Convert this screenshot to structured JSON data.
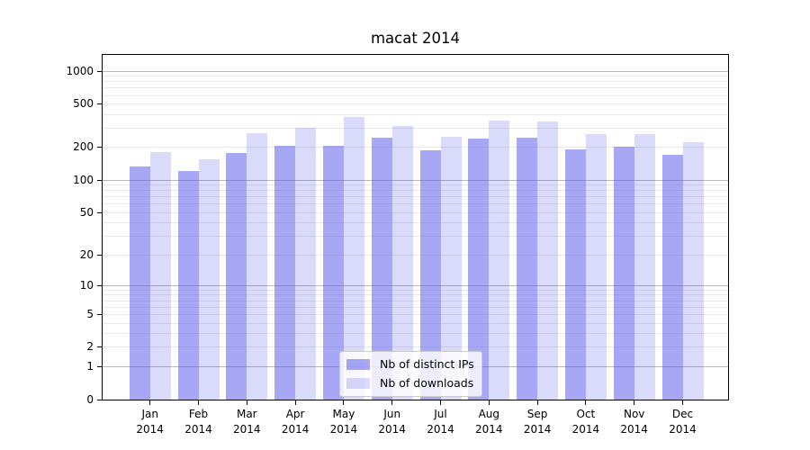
{
  "chart_data": {
    "type": "bar",
    "title": "macat 2014",
    "scale": "log1p",
    "grid": true,
    "legend_position": "lower center",
    "year_label": "2014",
    "categories": [
      "Jan",
      "Feb",
      "Mar",
      "Apr",
      "May",
      "Jun",
      "Jul",
      "Aug",
      "Sep",
      "Oct",
      "Nov",
      "Dec"
    ],
    "yticks": [
      0,
      1,
      2,
      5,
      10,
      20,
      50,
      100,
      200,
      500,
      1000
    ],
    "ylim": [
      0,
      1000
    ],
    "series": [
      {
        "name": "Nb of distinct IPs",
        "color": "#5050eb",
        "alpha": 0.5,
        "values": [
          134,
          121,
          178,
          208,
          207,
          246,
          188,
          240,
          248,
          191,
          203,
          170
        ]
      },
      {
        "name": "Nb of downloads",
        "color": "#5050eb",
        "alpha": 0.21,
        "values": [
          182,
          157,
          273,
          305,
          378,
          315,
          251,
          355,
          344,
          268,
          268,
          222
        ]
      }
    ],
    "colors": {
      "major_grid": "#b8b8b8",
      "minor_grid": "#e8e8e8",
      "axis": "#000000",
      "background": "#ffffff"
    }
  }
}
